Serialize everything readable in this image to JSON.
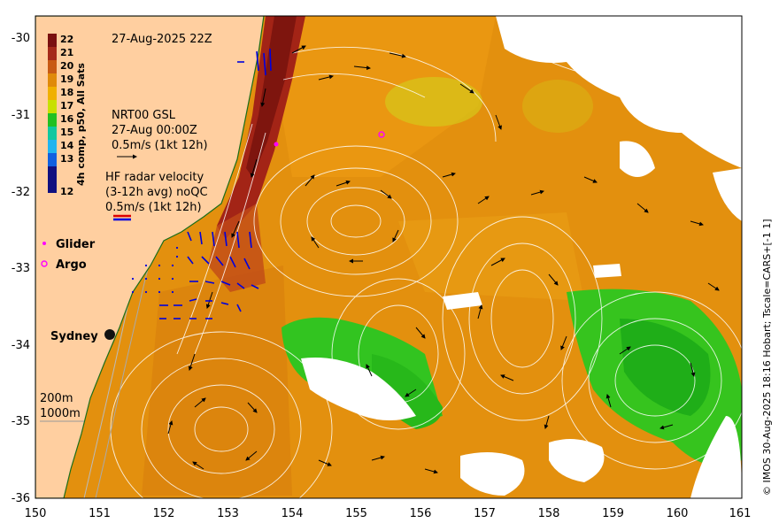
{
  "title_date": "27-Aug-2025 22Z",
  "colorbar": {
    "label": "4h comp, p50, All Sats",
    "ticks": [
      "22",
      "21",
      "20",
      "19",
      "18",
      "17",
      "16",
      "15",
      "14",
      "13",
      "12"
    ],
    "colors": [
      "#7a1010",
      "#a52a1a",
      "#c85a14",
      "#e08a0a",
      "#f0b000",
      "#c8e000",
      "#22c022",
      "#10c8a0",
      "#20b4f0",
      "#1060e0",
      "#101080"
    ]
  },
  "gsl": {
    "line1": "NRT00 GSL",
    "line2": "27-Aug 00:00Z",
    "line3": "0.5m/s (1kt 12h)"
  },
  "hf_radar": {
    "line1": "HF radar velocity",
    "line2": "(3-12h avg) noQC",
    "line3": "0.5m/s (1kt 12h)"
  },
  "legend": {
    "glider": "Glider",
    "argo": "Argo"
  },
  "city": "Sydney",
  "isobaths": {
    "a": "200m",
    "b": "1000m"
  },
  "credit": "© IMOS 30-Aug-2025 18:16 Hobart; Tscale=CARS+[-1 1]",
  "x_ticks": [
    "150",
    "151",
    "152",
    "153",
    "154",
    "155",
    "156",
    "157",
    "158",
    "159",
    "160",
    "161"
  ],
  "y_ticks": [
    "-30",
    "-31",
    "-32",
    "-33",
    "-34",
    "-35",
    "-36"
  ],
  "colors": {
    "land": "#ffcfa0",
    "sst_warm": "#e08e0c",
    "eac_core": "#8b1a10",
    "green_water": "#2ec41c",
    "contour": "#ffffff",
    "glider": "#ff00ff",
    "radar_vectors": "#0000dd"
  }
}
